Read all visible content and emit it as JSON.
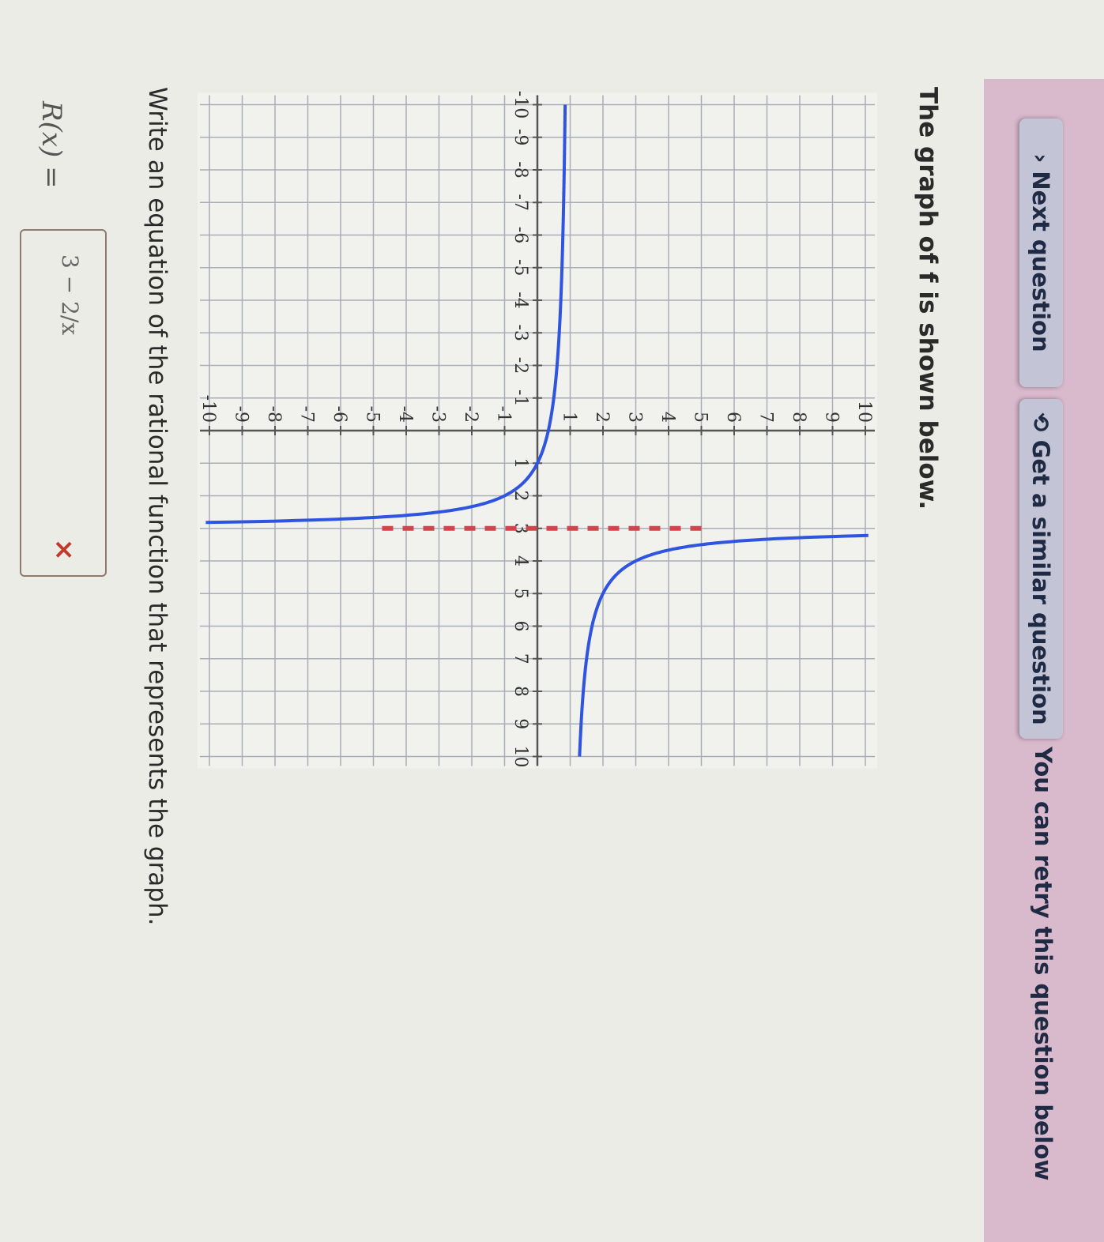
{
  "header": {
    "next_question": "Next question",
    "next_icon": "chevron-right-icon",
    "similar_question": "Get a similar question",
    "similar_icon": "refresh-icon",
    "retry_message": "You can retry this question below",
    "banner_color": "#d9b9cc"
  },
  "question": {
    "title": "The graph of f is shown below.",
    "prompt": "Write an equation of the rational function that represents the graph.",
    "lhs": "R(x) =",
    "answer_value": "3 − 2/x",
    "answer_status": "incorrect",
    "status_mark": "×"
  },
  "chart_data": {
    "type": "line",
    "xlim": [
      -10,
      10
    ],
    "ylim": [
      -10,
      10
    ],
    "grid": true,
    "x_ticks": [
      "-10",
      "-9",
      "-8",
      "-7",
      "-6",
      "-5",
      "-4",
      "-3",
      "-2",
      "-1",
      "1",
      "2",
      "3",
      "4",
      "5",
      "6",
      "7",
      "8",
      "9",
      "10"
    ],
    "y_ticks": [
      "-10",
      "-9",
      "-8",
      "-7",
      "-6",
      "-5",
      "-4",
      "-3",
      "-2",
      "-1",
      "1",
      "2",
      "3",
      "4",
      "5",
      "6",
      "7",
      "8",
      "9",
      "10"
    ],
    "series": [
      {
        "function": "1 + 2/(x-3)",
        "color": "#2f55e0",
        "points": [
          [
            -10,
            0.85
          ],
          [
            -5,
            0.75
          ],
          [
            -2,
            0.6
          ],
          [
            0,
            0.33
          ],
          [
            1,
            0
          ],
          [
            2,
            -1
          ],
          [
            2.5,
            -3
          ],
          [
            2.8,
            -9
          ],
          [
            3.2,
            11
          ],
          [
            3.5,
            5
          ],
          [
            4,
            3
          ],
          [
            5,
            2
          ],
          [
            7,
            1.5
          ],
          [
            10,
            1.29
          ]
        ]
      }
    ],
    "asymptote": {
      "type": "vertical",
      "x": 3,
      "y_range": [
        -5,
        5
      ],
      "color": "#d0454a",
      "style": "dashed"
    }
  }
}
